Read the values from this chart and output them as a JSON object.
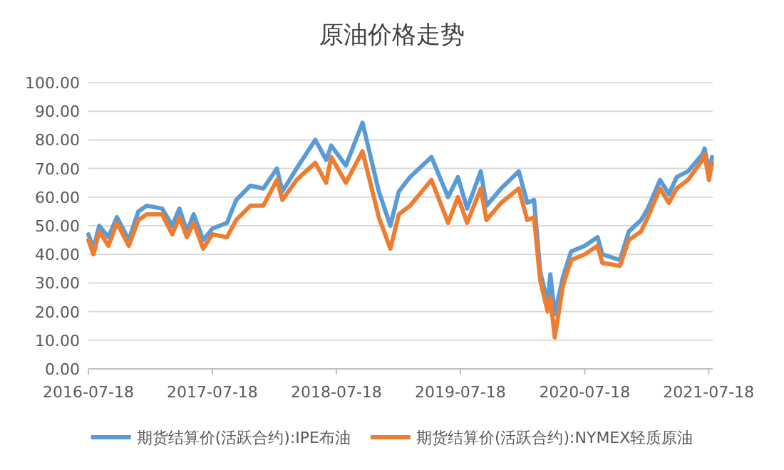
{
  "chart_data": {
    "type": "line",
    "title": "原油价格走势",
    "x": [
      "2016-07-18",
      "2016-08-02",
      "2016-08-19",
      "2016-09-15",
      "2016-10-10",
      "2016-11-14",
      "2016-12-12",
      "2017-01-06",
      "2017-02-20",
      "2017-03-22",
      "2017-04-12",
      "2017-05-04",
      "2017-05-24",
      "2017-06-21",
      "2017-07-18",
      "2017-08-30",
      "2017-09-26",
      "2017-11-07",
      "2017-12-15",
      "2018-01-24",
      "2018-02-09",
      "2018-03-23",
      "2018-05-17",
      "2018-06-18",
      "2018-07-03",
      "2018-08-15",
      "2018-10-03",
      "2018-11-20",
      "2018-12-24",
      "2019-01-18",
      "2019-02-20",
      "2019-04-24",
      "2019-06-12",
      "2019-07-11",
      "2019-08-07",
      "2019-09-16",
      "2019-10-03",
      "2019-11-15",
      "2020-01-06",
      "2020-01-31",
      "2020-02-20",
      "2020-03-09",
      "2020-03-31",
      "2020-04-08",
      "2020-04-21",
      "2020-05-15",
      "2020-06-08",
      "2020-07-18",
      "2020-08-25",
      "2020-09-08",
      "2020-10-30",
      "2020-11-25",
      "2020-12-31",
      "2021-01-20",
      "2021-02-25",
      "2021-03-23",
      "2021-04-15",
      "2021-05-18",
      "2021-06-30",
      "2021-07-06",
      "2021-07-19",
      "2021-07-28"
    ],
    "series": [
      {
        "name": "期货结算价(活跃合约):IPE布油",
        "color": "#5b9bd5",
        "values": [
          47,
          42,
          50,
          46,
          53,
          45,
          55,
          57,
          56,
          50,
          56,
          48,
          54,
          45,
          49,
          51,
          59,
          64,
          63,
          70,
          62,
          70,
          80,
          73,
          78,
          71,
          86,
          62,
          50,
          62,
          67,
          74,
          60,
          67,
          56,
          69,
          57,
          63,
          69,
          58,
          59,
          34,
          23,
          33,
          19,
          32,
          41,
          43,
          46,
          40,
          38,
          48,
          52,
          56,
          66,
          61,
          67,
          69,
          75,
          77,
          69,
          74
        ]
      },
      {
        "name": "期货结算价(活跃合约):NYMEX轻质原油",
        "color": "#ed7d31",
        "values": [
          45,
          40,
          48,
          43,
          51,
          43,
          52,
          54,
          54,
          47,
          53,
          46,
          51,
          42,
          47,
          46,
          52,
          57,
          57,
          66,
          59,
          66,
          72,
          65,
          74,
          65,
          76,
          53,
          42,
          54,
          57,
          66,
          51,
          60,
          51,
          63,
          52,
          58,
          63,
          52,
          53,
          31,
          20,
          25,
          11,
          29,
          38,
          40,
          43,
          37,
          36,
          45,
          48,
          53,
          63,
          58,
          63,
          66,
          73,
          75,
          66,
          72
        ]
      }
    ],
    "xlim": [
      "2016-07-18",
      "2021-07-30"
    ],
    "xticks": [
      "2016-07-18",
      "2017-07-18",
      "2018-07-18",
      "2019-07-18",
      "2020-07-18",
      "2021-07-18"
    ],
    "ylim": [
      0,
      100
    ],
    "yticks": [
      {
        "value": 0,
        "label": "0.00"
      },
      {
        "value": 10,
        "label": "10.00"
      },
      {
        "value": 20,
        "label": "20.00"
      },
      {
        "value": 30,
        "label": "30.00"
      },
      {
        "value": 40,
        "label": "40.00"
      },
      {
        "value": 50,
        "label": "50.00"
      },
      {
        "value": 60,
        "label": "60.00"
      },
      {
        "value": 70,
        "label": "70.00"
      },
      {
        "value": 80,
        "label": "80.00"
      },
      {
        "value": 90,
        "label": "90.00"
      },
      {
        "value": 100,
        "label": "100.00"
      }
    ],
    "grid": "y",
    "legend": "bottom"
  }
}
